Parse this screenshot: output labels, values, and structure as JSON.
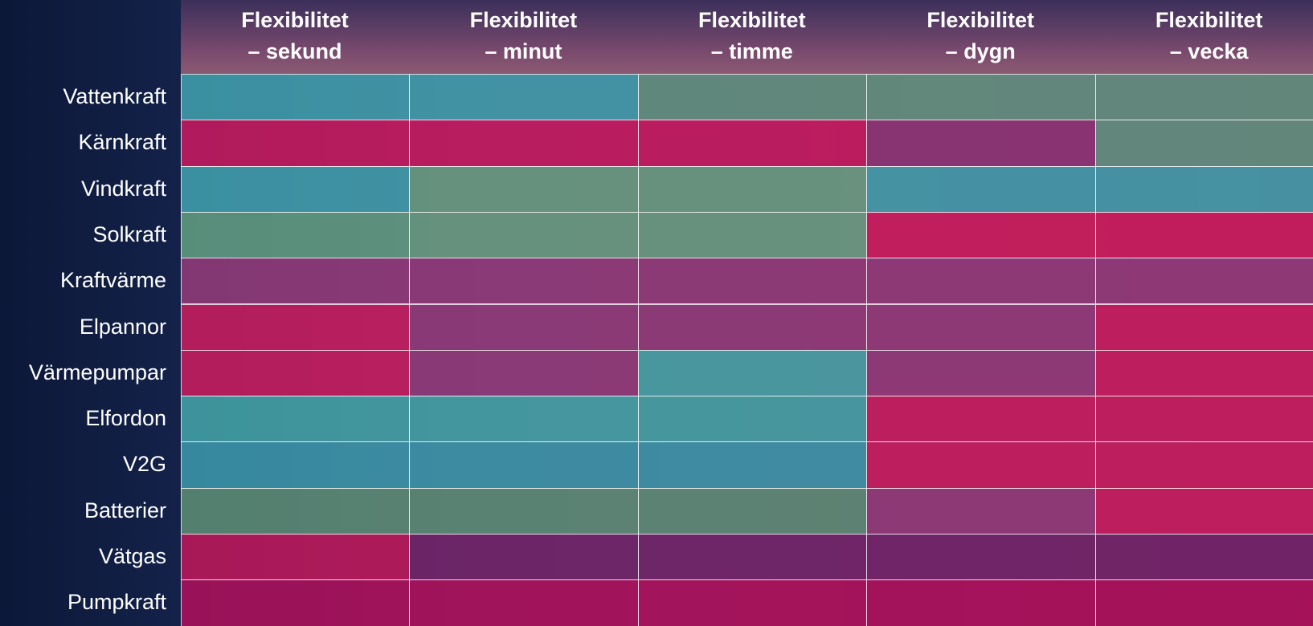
{
  "header": {
    "columns": [
      [
        "Flexibilitet",
        "– sekund"
      ],
      [
        "Flexibilitet",
        "– minut"
      ],
      [
        "Flexibilitet",
        "– timme"
      ],
      [
        "Flexibilitet",
        "– dygn"
      ],
      [
        "Flexibilitet",
        "– vecka"
      ]
    ]
  },
  "table": {
    "rows": [
      {
        "label": "Vattenkraft",
        "colors": [
          "#3f9caa",
          "#3f9caa",
          "#5f907e",
          "#5f907e",
          "#5f907e"
        ]
      },
      {
        "label": "Kärnkraft",
        "colors": [
          "#c21a5e",
          "#c21a5e",
          "#c21a5e",
          "#8a3474",
          "#5f907e"
        ]
      },
      {
        "label": "Vindkraft",
        "colors": [
          "#3f9caa",
          "#679b80",
          "#679b80",
          "#3f9caa",
          "#3f9caa"
        ]
      },
      {
        "label": "Solkraft",
        "colors": [
          "#5f9a80",
          "#679b80",
          "#679b80",
          "#c81c5c",
          "#c81c5c"
        ]
      },
      {
        "label": "Kraftvärme",
        "colors": [
          "#8f3a78",
          "#8f3a78",
          "#8f3a78",
          "#8f3a78",
          "#8f3a78"
        ]
      },
      {
        "label": "Elpannor",
        "colors": [
          "#c41d5e",
          "#8f3a78",
          "#8f3a78",
          "#8f3a78",
          "#c41d5e"
        ]
      },
      {
        "label": "Värmepumpar",
        "colors": [
          "#c41d5e",
          "#8f3a78",
          "#45a0a4",
          "#8f3a78",
          "#c41d5e"
        ]
      },
      {
        "label": "Elfordon",
        "colors": [
          "#42a0a4",
          "#42a0a4",
          "#42a0a4",
          "#c41d5e",
          "#c41d5e"
        ]
      },
      {
        "label": "V2G",
        "colors": [
          "#3a94a8",
          "#3a94a8",
          "#3a94a8",
          "#c41d5e",
          "#c41d5e"
        ]
      },
      {
        "label": "Batterier",
        "colors": [
          "#5a8a74",
          "#5a8a74",
          "#5a8a74",
          "#8f3a78",
          "#c41d5e"
        ]
      },
      {
        "label": "Vätgas",
        "colors": [
          "#b8185a",
          "#6e2468",
          "#6e2468",
          "#6e2468",
          "#6e2468"
        ]
      },
      {
        "label": "Pumpkraft",
        "colors": [
          "#a8105a",
          "#a8105a",
          "#a8105a",
          "#a8105a",
          "#a8105a"
        ]
      }
    ]
  }
}
